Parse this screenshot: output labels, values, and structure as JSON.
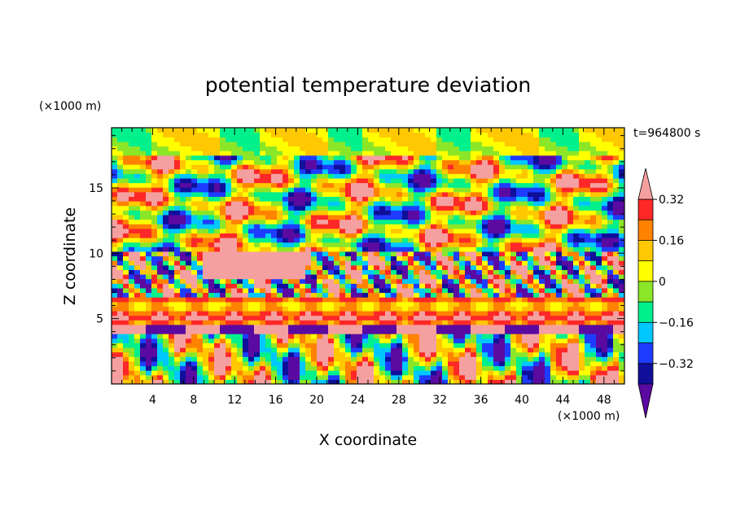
{
  "chart_data": {
    "type": "heatmap",
    "title": "potential temperature deviation",
    "time_label": "t=964800 s",
    "xlabel": "X coordinate",
    "ylabel": "Z coordinate",
    "x_unit": "(×1000 m)",
    "y_unit": "(×1000 m)",
    "xlim": [
      0,
      50
    ],
    "ylim": [
      0,
      19.6
    ],
    "x_ticks": [
      "4",
      "8",
      "12",
      "16",
      "20",
      "24",
      "28",
      "32",
      "36",
      "40",
      "44",
      "48"
    ],
    "y_ticks": [
      "5",
      "10",
      "15"
    ],
    "x_tick_values": [
      4,
      8,
      12,
      16,
      20,
      24,
      28,
      32,
      36,
      40,
      44,
      48
    ],
    "y_tick_values": [
      5,
      10,
      15
    ],
    "colorbar": {
      "levels": [
        -0.4,
        -0.32,
        -0.24,
        -0.16,
        -0.08,
        0,
        0.08,
        0.16,
        0.24,
        0.32,
        0.4
      ],
      "tick_labels": [
        "0.32",
        "0.16",
        "0",
        "−0.16",
        "−0.32"
      ],
      "tick_values": [
        0.32,
        0.16,
        0,
        -0.16,
        -0.32
      ],
      "colors": [
        "#5a0aa0",
        "#0f0f9a",
        "#1e3cff",
        "#00c8ff",
        "#00f08c",
        "#8ce628",
        "#ffff00",
        "#ffc800",
        "#ff8200",
        "#ff2828",
        "#f5a0a0"
      ]
    },
    "bands": [
      {
        "z_range": [
          0,
          4.0
        ],
        "description": "lower layer: mixed warm (red/orange) and cool (blue) eddies"
      },
      {
        "z_range": [
          4.0,
          4.6
        ],
        "description": "alternating purple (negative) and pink (positive) strip"
      },
      {
        "z_range": [
          4.6,
          6.5
        ],
        "description": "yellow/orange/red layered positive band"
      },
      {
        "z_range": [
          6.5,
          10.0
        ],
        "description": "turbulent mix of purple, pink, yellow"
      },
      {
        "z_range": [
          10.0,
          17.5
        ],
        "description": "large purple and pink cells with green/yellow borders"
      },
      {
        "z_range": [
          17.5,
          19.6
        ],
        "description": "green / light-green with cyan patches near top"
      }
    ]
  }
}
